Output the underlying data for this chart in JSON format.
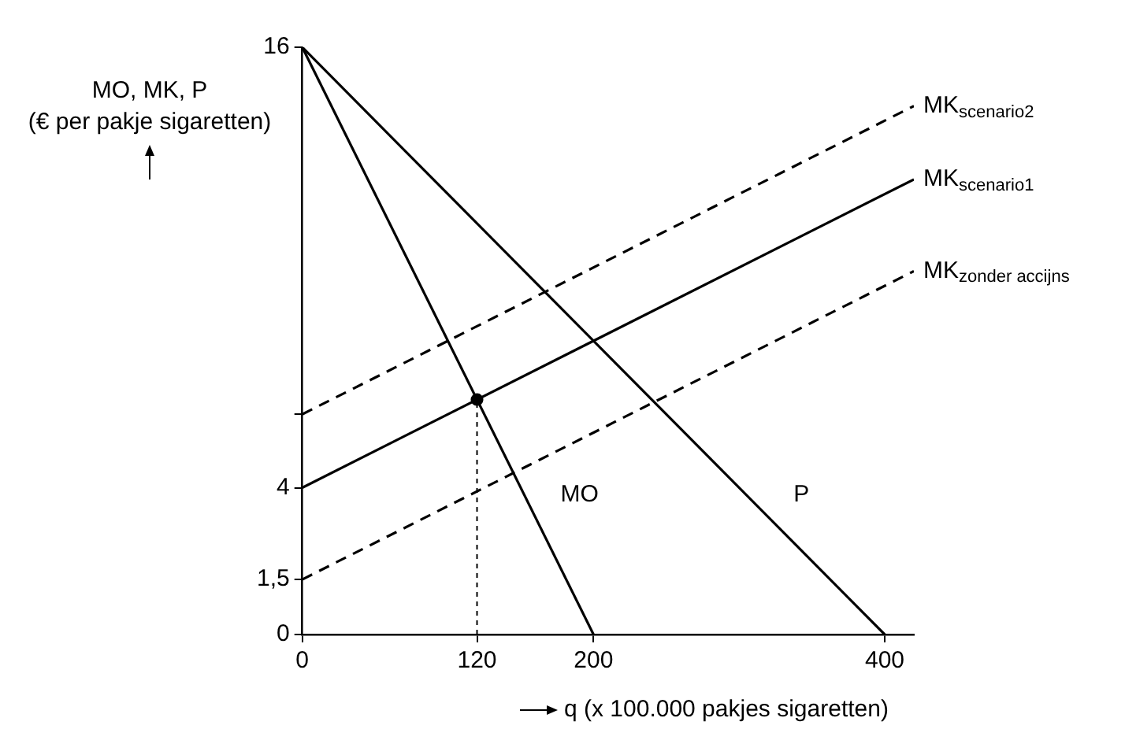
{
  "chart_data": {
    "type": "line",
    "xlabel": "q (x 100.000 pakjes sigaretten)",
    "ylabel": "MO, MK, P\n(€ per pakje sigaretten)",
    "xlim": [
      0,
      420
    ],
    "ylim": [
      0,
      16
    ],
    "xticks": [
      0,
      120,
      200,
      400
    ],
    "yticks": [
      0,
      {
        "value": 1.5,
        "label": "1,5"
      },
      4,
      {
        "value": 6,
        "label": null
      },
      16
    ],
    "grid": false,
    "legend": false,
    "series": [
      {
        "name": "MK$_{scenario2}$",
        "color": "#000000",
        "x": [
          0,
          420
        ],
        "values": [
          6,
          14.4
        ],
        "line_style": "dashed",
        "marker": "none"
      },
      {
        "name": "MK$_{scenario1}$",
        "color": "#000000",
        "x": [
          0,
          420
        ],
        "values": [
          4,
          12.4
        ],
        "line_style": "solid",
        "marker": "none"
      },
      {
        "name": "MK$_{zonder accijns}$",
        "color": "#000000",
        "x": [
          0,
          420
        ],
        "values": [
          1.5,
          9.9
        ],
        "line_style": "dashed",
        "marker": "none"
      },
      {
        "name": "MO",
        "color": "#000000",
        "x": [
          0,
          200
        ],
        "values": [
          16,
          0
        ],
        "line_style": "solid",
        "marker": "none"
      },
      {
        "name": "P",
        "color": "#000000",
        "x": [
          0,
          400
        ],
        "values": [
          16,
          0
        ],
        "line_style": "solid",
        "marker": "none"
      },
      {
        "color": "#000000",
        "x": [
          120,
          120
        ],
        "values": [
          0,
          6.4
        ],
        "line_style": "dotted",
        "marker": "none"
      },
      {
        "type": "scatter",
        "color": "#000000",
        "x": [
          120
        ],
        "values": [
          6.4
        ],
        "marker": "circle"
      }
    ]
  }
}
